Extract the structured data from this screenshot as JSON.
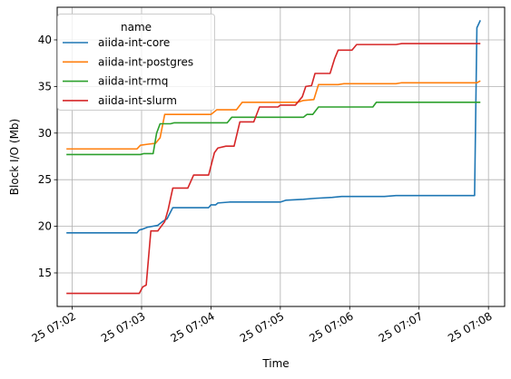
{
  "chart_data": {
    "type": "line",
    "xlabel": "Time",
    "ylabel": "Block I/O (Mb)",
    "xlim": [
      "25 07:01:47",
      "25 07:08:14"
    ],
    "ylim": [
      11.4,
      43.5
    ],
    "grid": true,
    "legend": {
      "title": "name",
      "placement": "top-left"
    },
    "x_ticks": [
      "25 07:02",
      "25 07:03",
      "25 07:04",
      "25 07:05",
      "25 07:06",
      "25 07:07",
      "25 07:08"
    ],
    "y_ticks": [
      15,
      20,
      25,
      30,
      35,
      40
    ],
    "series": [
      {
        "name": "aiida-int-core",
        "color": "#1f77b4",
        "points": [
          [
            "25 07:01:55",
            19.3
          ],
          [
            "25 07:02:56",
            19.3
          ],
          [
            "25 07:02:58",
            19.6
          ],
          [
            "25 07:03:01",
            19.7
          ],
          [
            "25 07:03:05",
            19.9
          ],
          [
            "25 07:03:14",
            20.1
          ],
          [
            "25 07:03:18",
            20.5
          ],
          [
            "25 07:03:22",
            20.8
          ],
          [
            "25 07:03:27",
            22.0
          ],
          [
            "25 07:03:58",
            22.0
          ],
          [
            "25 07:04:00",
            22.3
          ],
          [
            "25 07:04:04",
            22.3
          ],
          [
            "25 07:04:06",
            22.5
          ],
          [
            "25 07:04:16",
            22.6
          ],
          [
            "25 07:05:00",
            22.6
          ],
          [
            "25 07:05:05",
            22.8
          ],
          [
            "25 07:05:20",
            22.9
          ],
          [
            "25 07:05:30",
            23.0
          ],
          [
            "25 07:05:45",
            23.1
          ],
          [
            "25 07:05:53",
            23.2
          ],
          [
            "25 07:06:30",
            23.2
          ],
          [
            "25 07:06:40",
            23.3
          ],
          [
            "25 07:07:48",
            23.3
          ],
          [
            "25 07:07:50",
            41.3
          ],
          [
            "25 07:07:53",
            42.1
          ]
        ]
      },
      {
        "name": "aiida-int-postgres",
        "color": "#ff7f0e",
        "points": [
          [
            "25 07:01:55",
            28.3
          ],
          [
            "25 07:02:56",
            28.3
          ],
          [
            "25 07:02:59",
            28.7
          ],
          [
            "25 07:03:05",
            28.8
          ],
          [
            "25 07:03:12",
            28.9
          ],
          [
            "25 07:03:16",
            29.5
          ],
          [
            "25 07:03:20",
            32.0
          ],
          [
            "25 07:04:00",
            32.0
          ],
          [
            "25 07:04:05",
            32.5
          ],
          [
            "25 07:04:22",
            32.5
          ],
          [
            "25 07:04:27",
            33.3
          ],
          [
            "25 07:05:15",
            33.3
          ],
          [
            "25 07:05:20",
            33.5
          ],
          [
            "25 07:05:29",
            33.6
          ],
          [
            "25 07:05:33",
            35.2
          ],
          [
            "25 07:05:50",
            35.2
          ],
          [
            "25 07:05:55",
            35.3
          ],
          [
            "25 07:06:40",
            35.3
          ],
          [
            "25 07:06:45",
            35.4
          ],
          [
            "25 07:07:50",
            35.4
          ],
          [
            "25 07:07:53",
            35.6
          ]
        ]
      },
      {
        "name": "aiida-int-rmq",
        "color": "#2ca02c",
        "points": [
          [
            "25 07:01:55",
            27.7
          ],
          [
            "25 07:02:59",
            27.7
          ],
          [
            "25 07:03:02",
            27.8
          ],
          [
            "25 07:03:10",
            27.8
          ],
          [
            "25 07:03:13",
            30.0
          ],
          [
            "25 07:03:16",
            31.0
          ],
          [
            "25 07:03:25",
            31.0
          ],
          [
            "25 07:03:28",
            31.1
          ],
          [
            "25 07:04:14",
            31.1
          ],
          [
            "25 07:04:18",
            31.7
          ],
          [
            "25 07:05:20",
            31.7
          ],
          [
            "25 07:05:23",
            32.0
          ],
          [
            "25 07:05:28",
            32.0
          ],
          [
            "25 07:05:33",
            32.8
          ],
          [
            "25 07:06:20",
            32.8
          ],
          [
            "25 07:06:23",
            33.3
          ],
          [
            "25 07:07:53",
            33.3
          ]
        ]
      },
      {
        "name": "aiida-int-slurm",
        "color": "#d62728",
        "points": [
          [
            "25 07:01:55",
            12.8
          ],
          [
            "25 07:02:58",
            12.8
          ],
          [
            "25 07:03:01",
            13.5
          ],
          [
            "25 07:03:04",
            13.7
          ],
          [
            "25 07:03:08",
            19.5
          ],
          [
            "25 07:03:14",
            19.5
          ],
          [
            "25 07:03:20",
            20.5
          ],
          [
            "25 07:03:23",
            21.8
          ],
          [
            "25 07:03:27",
            24.1
          ],
          [
            "25 07:03:40",
            24.1
          ],
          [
            "25 07:03:45",
            25.5
          ],
          [
            "25 07:03:58",
            25.5
          ],
          [
            "25 07:04:03",
            27.9
          ],
          [
            "25 07:04:06",
            28.4
          ],
          [
            "25 07:04:13",
            28.6
          ],
          [
            "25 07:04:20",
            28.6
          ],
          [
            "25 07:04:25",
            31.2
          ],
          [
            "25 07:04:37",
            31.2
          ],
          [
            "25 07:04:42",
            32.8
          ],
          [
            "25 07:04:58",
            32.8
          ],
          [
            "25 07:05:00",
            33.0
          ],
          [
            "25 07:05:13",
            33.0
          ],
          [
            "25 07:05:19",
            33.9
          ],
          [
            "25 07:05:22",
            35.0
          ],
          [
            "25 07:05:27",
            35.1
          ],
          [
            "25 07:05:30",
            36.4
          ],
          [
            "25 07:05:43",
            36.4
          ],
          [
            "25 07:05:47",
            38.0
          ],
          [
            "25 07:05:50",
            38.9
          ],
          [
            "25 07:06:02",
            38.9
          ],
          [
            "25 07:06:06",
            39.5
          ],
          [
            "25 07:06:40",
            39.5
          ],
          [
            "25 07:06:45",
            39.6
          ],
          [
            "25 07:07:53",
            39.6
          ]
        ]
      }
    ]
  }
}
